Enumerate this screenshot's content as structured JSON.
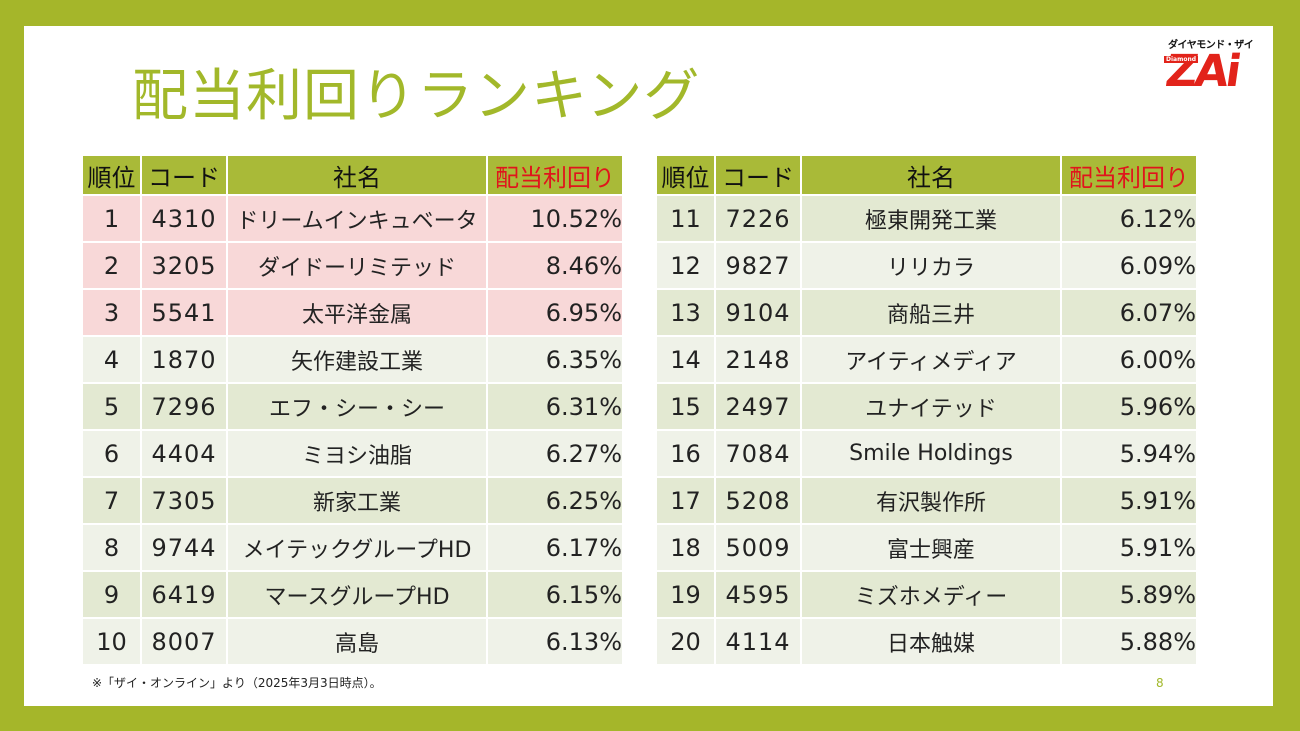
{
  "slide": {
    "title": "配当利回りランキング",
    "note": "※「ザイ・オンライン」より（2025年3月3日時点）。",
    "page_number": "8"
  },
  "logo": {
    "kana": "ダイヤモンド・ザイ",
    "sub": "Diamond",
    "main": "ZAi"
  },
  "table": {
    "headers": {
      "rank": "順位",
      "code": "コード",
      "name": "社名",
      "yield": "配当利回り"
    },
    "left_rows": [
      {
        "rank": "1",
        "code": "4310",
        "name": "ドリームインキュベータ",
        "yield": "10.52%"
      },
      {
        "rank": "2",
        "code": "3205",
        "name": "ダイドーリミテッド",
        "yield": "8.46%"
      },
      {
        "rank": "3",
        "code": "5541",
        "name": "太平洋金属",
        "yield": "6.95%"
      },
      {
        "rank": "4",
        "code": "1870",
        "name": "矢作建設工業",
        "yield": "6.35%"
      },
      {
        "rank": "5",
        "code": "7296",
        "name": "エフ・シー・シー",
        "yield": "6.31%"
      },
      {
        "rank": "6",
        "code": "4404",
        "name": "ミヨシ油脂",
        "yield": "6.27%"
      },
      {
        "rank": "7",
        "code": "7305",
        "name": "新家工業",
        "yield": "6.25%"
      },
      {
        "rank": "8",
        "code": "9744",
        "name": "メイテックグループHD",
        "yield": "6.17%"
      },
      {
        "rank": "9",
        "code": "6419",
        "name": "マースグループHD",
        "yield": "6.15%"
      },
      {
        "rank": "10",
        "code": "8007",
        "name": "高島",
        "yield": "6.13%"
      }
    ],
    "right_rows": [
      {
        "rank": "11",
        "code": "7226",
        "name": "極東開発工業",
        "yield": "6.12%"
      },
      {
        "rank": "12",
        "code": "9827",
        "name": "リリカラ",
        "yield": "6.09%"
      },
      {
        "rank": "13",
        "code": "9104",
        "name": "商船三井",
        "yield": "6.07%"
      },
      {
        "rank": "14",
        "code": "2148",
        "name": "アイティメディア",
        "yield": "6.00%"
      },
      {
        "rank": "15",
        "code": "2497",
        "name": "ユナイテッド",
        "yield": "5.96%"
      },
      {
        "rank": "16",
        "code": "7084",
        "name": "Smile Holdings",
        "yield": "5.94%"
      },
      {
        "rank": "17",
        "code": "5208",
        "name": "有沢製作所",
        "yield": "5.91%"
      },
      {
        "rank": "18",
        "code": "5009",
        "name": "富士興産",
        "yield": "5.91%"
      },
      {
        "rank": "19",
        "code": "4595",
        "name": "ミズホメディー",
        "yield": "5.89%"
      },
      {
        "rank": "20",
        "code": "4114",
        "name": "日本触媒",
        "yield": "5.88%"
      }
    ]
  },
  "colors": {
    "accent": "#a5b62a",
    "yield_text": "#e0151c",
    "top_rows": "#f8d8d8"
  }
}
